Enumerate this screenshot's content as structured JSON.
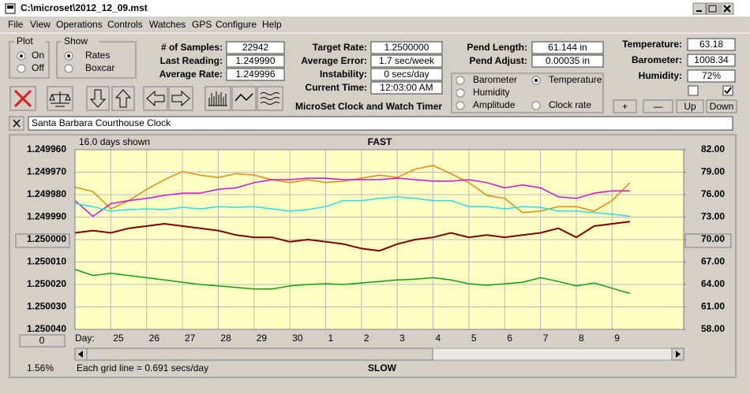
{
  "window": {
    "title": "C:\\microset\\2012_12_09.mst"
  },
  "menu": [
    "File",
    "View",
    "Operations",
    "Controls",
    "Watches",
    "GPS",
    "Configure",
    "Help"
  ],
  "plot_group": {
    "title": "Plot",
    "options": [
      "On",
      "Off"
    ],
    "selected": 0
  },
  "show_group": {
    "title": "Show",
    "options": [
      "Rates",
      "Boxcar"
    ],
    "selected": 0
  },
  "fields_1": [
    {
      "label": "# of Samples:",
      "value": "22942"
    },
    {
      "label": "Last Reading:",
      "value": "1.249990"
    },
    {
      "label": "Average Rate:",
      "value": "1.249996"
    }
  ],
  "fields_2": [
    {
      "label": "Target Rate:",
      "value": "1.2500000"
    },
    {
      "label": "Average Error:",
      "value": "1.7 sec/week"
    },
    {
      "label": "Instability:",
      "value": "0 secs/day"
    },
    {
      "label": "Current Time:",
      "value": "12:03:00 AM"
    }
  ],
  "fields_3": [
    {
      "label": "Pend Length:",
      "value": "61.144 in"
    },
    {
      "label": "Pend Adjust:",
      "value": "0.00035 in"
    }
  ],
  "fields_4": [
    {
      "label": "Temperature:",
      "value": "63.18"
    },
    {
      "label": "Barometer:",
      "value": "1008.34"
    },
    {
      "label": "Humidity:",
      "value": "72%"
    }
  ],
  "checkboxes": [
    false,
    true
  ],
  "app_title": "MicroSet Clock and Watch Timer",
  "adjust_buttons": [
    "+",
    "—",
    "Up",
    "Down"
  ],
  "clock_name": "Santa Barbara Courthouse Clock",
  "chart_data": {
    "type": "line",
    "top_label": "FAST",
    "bottom_label": "SLOW",
    "days_shown": "16.0 days shown",
    "x_axis_label": "Day:",
    "scroll_value": "0",
    "zoom": "1.56%",
    "grid_note": "Each grid line = 0.691 secs/day",
    "grid": true,
    "selected_series": 1,
    "xlim": [
      0,
      17
    ],
    "xticks": [
      {
        "value": 1,
        "label": "25"
      },
      {
        "value": 2,
        "label": "26"
      },
      {
        "value": 3,
        "label": "27"
      },
      {
        "value": 4,
        "label": "28"
      },
      {
        "value": 5,
        "label": "29"
      },
      {
        "value": 6,
        "label": "30"
      },
      {
        "value": 7,
        "label": "1"
      },
      {
        "value": 8,
        "label": "2"
      },
      {
        "value": 9,
        "label": "3"
      },
      {
        "value": 10,
        "label": "4"
      },
      {
        "value": 11,
        "label": "5"
      },
      {
        "value": 12,
        "label": "6"
      },
      {
        "value": 13,
        "label": "7"
      },
      {
        "value": 14,
        "label": "8"
      },
      {
        "value": 15,
        "label": "9"
      }
    ],
    "ylim": [
      1.25004,
      1.24996
    ],
    "yticks": [
      {
        "value": 1.24996,
        "label": "1.249960"
      },
      {
        "value": 1.24997,
        "label": "1.249970"
      },
      {
        "value": 1.24998,
        "label": "1.249980"
      },
      {
        "value": 1.24999,
        "label": "1.249990"
      },
      {
        "value": 1.25,
        "label": "1.250000"
      },
      {
        "value": 1.25001,
        "label": "1.250010"
      },
      {
        "value": 1.25002,
        "label": "1.250020"
      },
      {
        "value": 1.25003,
        "label": "1.250030"
      },
      {
        "value": 1.25004,
        "label": "1.250040"
      }
    ],
    "y2lim": [
      58,
      82
    ],
    "y2ticks": [
      {
        "value": 82,
        "label": "82.00"
      },
      {
        "value": 79,
        "label": "79.00"
      },
      {
        "value": 76,
        "label": "76.00"
      },
      {
        "value": 73,
        "label": "73.00"
      },
      {
        "value": 70,
        "label": "70.00"
      },
      {
        "value": 67,
        "label": "67.00"
      },
      {
        "value": 64,
        "label": "64.00"
      },
      {
        "value": 61,
        "label": "61.00"
      },
      {
        "value": 58,
        "label": "58.00"
      }
    ],
    "x": [
      0,
      0.5,
      1,
      1.5,
      2,
      2.5,
      3,
      3.5,
      4,
      4.5,
      5,
      5.5,
      6,
      6.5,
      7,
      7.5,
      8,
      8.5,
      9,
      9.5,
      10,
      10.5,
      11,
      11.5,
      12,
      12.5,
      13,
      13.5,
      14,
      14.5,
      15,
      15.5
    ],
    "series": [
      {
        "name": "Barometer",
        "color": "#e08a10",
        "axis": "y2",
        "values": [
          77.0,
          76.4,
          74.1,
          75.2,
          76.7,
          78.0,
          79.1,
          78.6,
          78.3,
          78.8,
          78.6,
          78.0,
          77.6,
          78.0,
          77.6,
          77.8,
          78.2,
          78.6,
          78.3,
          79.4,
          79.9,
          78.8,
          77.6,
          75.9,
          75.5,
          73.6,
          73.8,
          74.4,
          74.4,
          73.8,
          75.2,
          77.6
        ]
      },
      {
        "name": "Temperature",
        "color": "#10a010",
        "axis": "y2",
        "values": [
          66.0,
          65.2,
          65.5,
          65.2,
          64.9,
          64.6,
          64.3,
          64.0,
          63.8,
          63.6,
          63.4,
          63.4,
          63.8,
          64.0,
          64.1,
          64.0,
          64.2,
          64.4,
          64.6,
          64.7,
          64.9,
          64.6,
          64.1,
          63.9,
          64.1,
          64.3,
          64.9,
          64.4,
          63.8,
          64.2,
          63.5,
          62.8
        ]
      },
      {
        "name": "Humidity",
        "color": "#d010d0",
        "axis": "y2",
        "values": [
          75.2,
          73.1,
          74.8,
          75.2,
          75.5,
          75.9,
          76.2,
          76.2,
          76.7,
          76.9,
          77.6,
          78.0,
          78.0,
          78.2,
          78.2,
          78.0,
          78.0,
          78.0,
          78.2,
          78.0,
          77.8,
          77.8,
          78.0,
          77.6,
          76.9,
          77.3,
          76.9,
          75.7,
          75.5,
          76.2,
          76.5,
          76.5
        ]
      },
      {
        "name": "Amplitude",
        "color": "#20e0e8",
        "axis": "y2",
        "values": [
          74.8,
          74.4,
          73.8,
          74.0,
          74.1,
          74.0,
          74.3,
          74.1,
          74.4,
          74.3,
          74.4,
          74.1,
          73.8,
          74.0,
          74.4,
          75.2,
          75.2,
          75.5,
          75.7,
          75.5,
          75.2,
          75.2,
          74.4,
          74.4,
          74.1,
          74.4,
          74.3,
          73.8,
          73.8,
          73.6,
          73.4,
          73.1
        ]
      },
      {
        "name": "Clock rate",
        "color": "#800000",
        "axis": "y",
        "values": [
          1.249997,
          1.249996,
          1.249997,
          1.249995,
          1.249994,
          1.249993,
          1.249994,
          1.249995,
          1.249996,
          1.249998,
          1.249999,
          1.249999,
          1.250001,
          1.25,
          1.250001,
          1.250002,
          1.250004,
          1.250005,
          1.250002,
          1.25,
          1.249999,
          1.249997,
          1.249999,
          1.249998,
          1.249999,
          1.249998,
          1.249997,
          1.249995,
          1.249999,
          1.249994,
          1.249993,
          1.249992
        ]
      }
    ]
  }
}
